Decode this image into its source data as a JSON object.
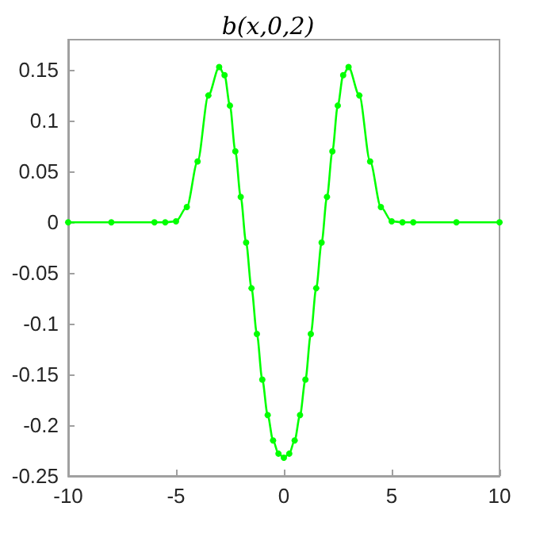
{
  "chart_data": {
    "type": "line",
    "title": "b(x,0,2)",
    "x": [
      -10,
      -8,
      -6,
      -5.5,
      -5,
      -4.5,
      -4,
      -3.5,
      -3,
      -2.75,
      -2.5,
      -2.25,
      -2,
      -1.75,
      -1.5,
      -1.25,
      -1,
      -0.75,
      -0.5,
      -0.25,
      0,
      0.25,
      0.5,
      0.75,
      1,
      1.25,
      1.5,
      1.75,
      2,
      2.25,
      2.5,
      2.75,
      3,
      3.5,
      4,
      4.5,
      5,
      5.5,
      6,
      8,
      10
    ],
    "series": [
      {
        "color": "#00ff00",
        "values": [
          0,
          0,
          0,
          0,
          0.001,
          0.015,
          0.06,
          0.125,
          0.153,
          0.145,
          0.115,
          0.07,
          0.025,
          -0.02,
          -0.065,
          -0.11,
          -0.155,
          -0.19,
          -0.215,
          -0.228,
          -0.232,
          -0.228,
          -0.215,
          -0.19,
          -0.155,
          -0.11,
          -0.065,
          -0.02,
          0.025,
          0.07,
          0.115,
          0.145,
          0.153,
          0.125,
          0.06,
          0.015,
          0.001,
          0,
          0,
          0,
          0
        ]
      }
    ],
    "xlim": [
      -10,
      10
    ],
    "xticks": [
      -10,
      -5,
      0,
      5,
      10
    ],
    "ylim": [
      -0.25,
      0.18
    ],
    "yticks": [
      -0.25,
      -0.2,
      -0.15,
      -0.1,
      -0.05,
      0,
      0.05,
      0.1,
      0.15
    ],
    "grid": false,
    "marker": "circle",
    "line_style": "solid"
  }
}
